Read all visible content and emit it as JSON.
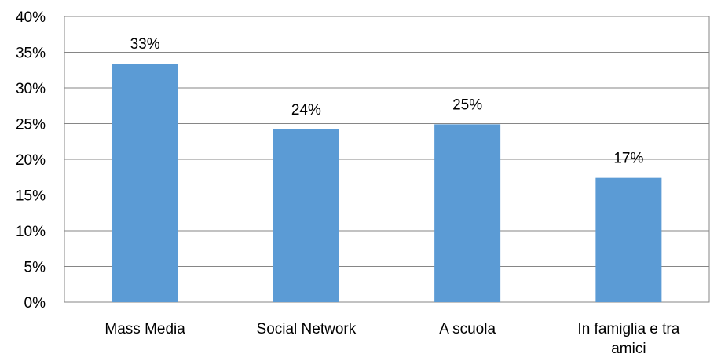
{
  "chart_data": {
    "type": "bar",
    "categories": [
      [
        "Mass Media"
      ],
      [
        "Social Network"
      ],
      [
        "A scuola"
      ],
      [
        "In famiglia e tra",
        "amici"
      ]
    ],
    "values": [
      33.4,
      24.2,
      24.9,
      17.4
    ],
    "data_labels": [
      "33%",
      "24%",
      "25%",
      "17%"
    ],
    "y_ticks": [
      "0%",
      "5%",
      "10%",
      "15%",
      "20%",
      "25%",
      "30%",
      "35%",
      "40%"
    ],
    "ylim": [
      0,
      40
    ],
    "y_step": 5,
    "title": "",
    "xlabel": "",
    "ylabel": "",
    "grid": true,
    "legend": "none",
    "colors": {
      "bar": "#5b9bd5",
      "grid": "#868686",
      "axis": "#868686"
    }
  }
}
